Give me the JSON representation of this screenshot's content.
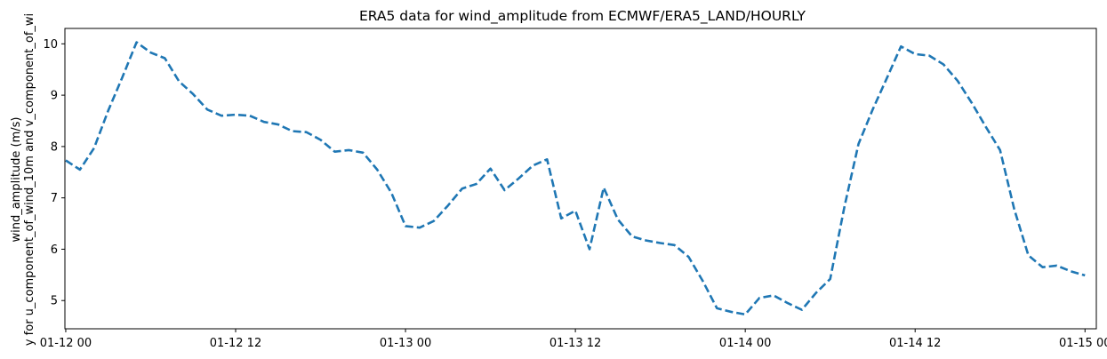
{
  "chart_data": {
    "type": "line",
    "title": "ERA5 data for wind_amplitude from ECMWF/ERA5_LAND/HOURLY",
    "ylabel_line1": "wind_amplitude (m/s)",
    "ylabel_line2": "y for u_component_of_wind_10m and v_component_of_wi",
    "xlabel": "",
    "xlim": [
      -0.06,
      72.8
    ],
    "ylim": [
      4.45,
      10.3
    ],
    "x_ticks": [
      {
        "x": 0,
        "label": "01-12 00"
      },
      {
        "x": 12,
        "label": "01-12 12"
      },
      {
        "x": 24,
        "label": "01-13 00"
      },
      {
        "x": 36,
        "label": "01-13 12"
      },
      {
        "x": 48,
        "label": "01-14 00"
      },
      {
        "x": 60,
        "label": "01-14 12"
      },
      {
        "x": 72,
        "label": "01-15 00"
      }
    ],
    "y_ticks": [
      {
        "y": 5,
        "label": "5"
      },
      {
        "y": 6,
        "label": "6"
      },
      {
        "y": 7,
        "label": "7"
      },
      {
        "y": 8,
        "label": "8"
      },
      {
        "y": 9,
        "label": "9"
      },
      {
        "y": 10,
        "label": "10"
      }
    ],
    "grid": false,
    "series": [
      {
        "color": "#1f77b4",
        "line_style": "dashed",
        "x": [
          0,
          1,
          2,
          3,
          4,
          5,
          6,
          7,
          8,
          9,
          10,
          11,
          12,
          13,
          14,
          15,
          16,
          17,
          18,
          19,
          20,
          21,
          22,
          23,
          24,
          25,
          26,
          27,
          28,
          29,
          30,
          31,
          32,
          33,
          34,
          35,
          36,
          37,
          38,
          39,
          40,
          41,
          42,
          43,
          44,
          45,
          46,
          47,
          48,
          49,
          50,
          51,
          52,
          53,
          54,
          55,
          56,
          57,
          58,
          59,
          60,
          61,
          62,
          63,
          64,
          65,
          66,
          67,
          68,
          69,
          70,
          71,
          72
        ],
        "values": [
          7.73,
          7.55,
          7.97,
          8.7,
          9.35,
          10.03,
          9.83,
          9.72,
          9.27,
          9.02,
          8.72,
          8.6,
          8.62,
          8.6,
          8.48,
          8.43,
          8.3,
          8.28,
          8.13,
          7.9,
          7.93,
          7.88,
          7.55,
          7.1,
          6.45,
          6.42,
          6.55,
          6.85,
          7.18,
          7.27,
          7.57,
          7.15,
          7.38,
          7.63,
          7.75,
          6.6,
          6.75,
          6.0,
          7.2,
          6.58,
          6.25,
          6.17,
          6.12,
          6.08,
          5.85,
          5.38,
          4.85,
          4.78,
          4.73,
          5.05,
          5.1,
          4.95,
          4.82,
          5.15,
          5.42,
          6.82,
          8.05,
          8.72,
          9.33,
          9.95,
          9.8,
          9.77,
          9.6,
          9.28,
          8.85,
          8.38,
          7.93,
          6.78,
          5.88,
          5.65,
          5.68,
          5.57,
          5.49
        ]
      }
    ]
  }
}
